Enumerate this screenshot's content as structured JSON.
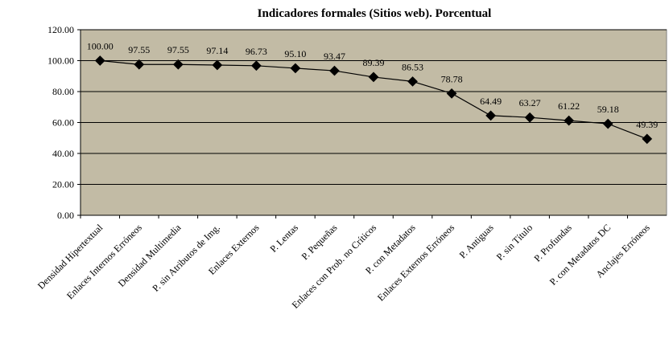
{
  "chart_data": {
    "type": "line",
    "title": "Indicadores formales (Sitios web). Porcentual",
    "categories": [
      "Densidad Hipertextual",
      "Enlaces Internos Erróneos",
      "Densidad Multimedia",
      "P. sin Atributos de Img.",
      "Enlaces Externos",
      "P. Lentas",
      "P. Pequeñas",
      "Enlaces con Prob. no Críticos",
      "P. con Metadatos",
      "Enlaces Externos Erróneos",
      "P. Antiguas",
      "P. sin Título",
      "P. Profundas",
      "P. con Metadatos DC",
      "Anclajes Erróneos"
    ],
    "values": [
      100.0,
      97.55,
      97.55,
      97.14,
      96.73,
      95.1,
      93.47,
      89.39,
      86.53,
      78.78,
      64.49,
      63.27,
      61.22,
      59.18,
      49.39
    ],
    "value_labels": [
      "100.00",
      "97.55",
      "97.55",
      "97.14",
      "96.73",
      "95.10",
      "93.47",
      "89.39",
      "86.53",
      "78.78",
      "64.49",
      "63.27",
      "61.22",
      "59.18",
      "49.39"
    ],
    "color": "#000000",
    "ylim": [
      0,
      120
    ],
    "yticks": [
      {
        "value": 0,
        "label": "0.00"
      },
      {
        "value": 20,
        "label": "20.00"
      },
      {
        "value": 40,
        "label": "40.00"
      },
      {
        "value": 60,
        "label": "60.00"
      },
      {
        "value": 80,
        "label": "80.00"
      },
      {
        "value": 100,
        "label": "100.00"
      },
      {
        "value": 120,
        "label": "120.00"
      }
    ],
    "grid": true
  }
}
